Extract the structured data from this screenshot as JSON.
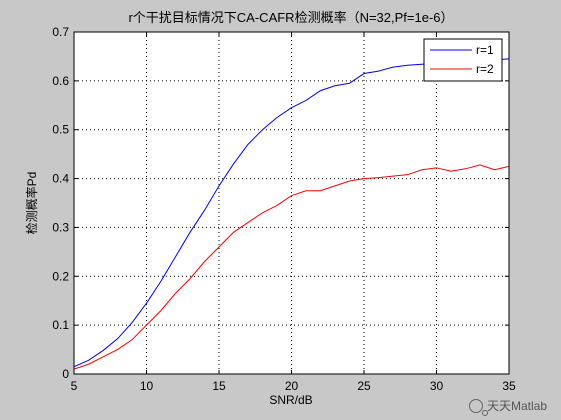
{
  "figure": {
    "background": "#c8c8c8",
    "axes_background": "#ffffff",
    "watermark": "天天Matlab"
  },
  "chart_data": {
    "type": "line",
    "title": "r个干扰目标情况下CA-CAFR检测概率（N=32,Pf=1e-6）",
    "xlabel": "SNR/dB",
    "ylabel": "检测概率Pd",
    "xlim": [
      5,
      35
    ],
    "ylim": [
      0,
      0.7
    ],
    "xticks": [
      5,
      10,
      15,
      20,
      25,
      30,
      35
    ],
    "yticks": [
      0,
      0.1,
      0.2,
      0.3,
      0.4,
      0.5,
      0.6,
      0.7
    ],
    "xtick_labels": [
      "5",
      "10",
      "15",
      "20",
      "25",
      "30",
      "35"
    ],
    "ytick_labels": [
      "0",
      "0.1",
      "0.2",
      "0.3",
      "0.4",
      "0.5",
      "0.6",
      "0.7"
    ],
    "grid": true,
    "grid_style": "dotted",
    "legend_position": "top-right",
    "x": [
      5,
      6,
      7,
      8,
      9,
      10,
      11,
      12,
      13,
      14,
      15,
      16,
      17,
      18,
      19,
      20,
      21,
      22,
      23,
      24,
      25,
      26,
      27,
      28,
      29,
      30,
      31,
      32,
      33,
      34,
      35
    ],
    "series": [
      {
        "name": "r=1",
        "color": "#0000ff",
        "values": [
          0.015,
          0.028,
          0.048,
          0.072,
          0.105,
          0.145,
          0.19,
          0.24,
          0.29,
          0.335,
          0.385,
          0.43,
          0.47,
          0.5,
          0.525,
          0.545,
          0.56,
          0.58,
          0.59,
          0.595,
          0.615,
          0.62,
          0.628,
          0.632,
          0.634,
          0.636,
          0.638,
          0.64,
          0.642,
          0.643,
          0.645
        ]
      },
      {
        "name": "r=2",
        "color": "#ff0000",
        "values": [
          0.01,
          0.02,
          0.035,
          0.05,
          0.07,
          0.1,
          0.13,
          0.165,
          0.195,
          0.23,
          0.26,
          0.29,
          0.31,
          0.33,
          0.345,
          0.365,
          0.375,
          0.375,
          0.385,
          0.395,
          0.4,
          0.402,
          0.405,
          0.408,
          0.418,
          0.422,
          0.415,
          0.42,
          0.428,
          0.418,
          0.425
        ]
      }
    ]
  }
}
